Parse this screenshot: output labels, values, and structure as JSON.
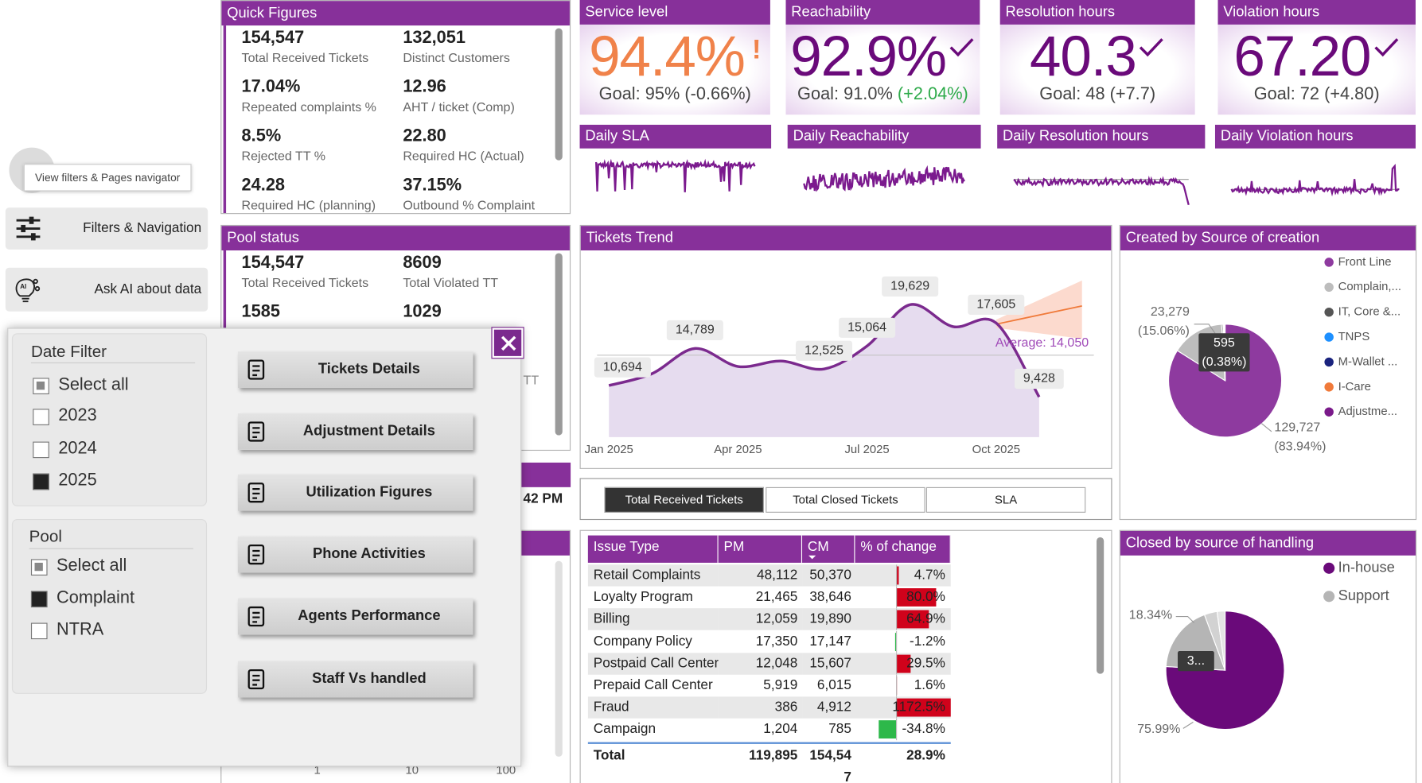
{
  "sidebar": {
    "tooltip": "View filters & Pages navigator",
    "filters_button": "Filters & Navigation",
    "ai_button": "Ask AI about data"
  },
  "quick_figures": {
    "title": "Quick Figures",
    "items": [
      {
        "value": "154,547",
        "label": "Total Received Tickets"
      },
      {
        "value": "132,051",
        "label": "Distinct Customers"
      },
      {
        "value": "17.04%",
        "label": "Repeated complaints %"
      },
      {
        "value": "12.96",
        "label": "AHT / ticket (Comp)"
      },
      {
        "value": "8.5%",
        "label": "Rejected TT %"
      },
      {
        "value": "22.80",
        "label": "Required HC (Actual)"
      },
      {
        "value": "24.28",
        "label": "Required HC (planning)"
      },
      {
        "value": "37.15%",
        "label": "Outbound % Complaint"
      }
    ]
  },
  "pool_status": {
    "title": "Pool status",
    "items": [
      {
        "value": "154,547",
        "label": "Total Received Tickets"
      },
      {
        "value": "8609",
        "label": "Total Violated TT"
      },
      {
        "value": "1585"
      },
      {
        "value": "1029"
      }
    ],
    "fragments": [
      "TT",
      "42 PM"
    ]
  },
  "bottom_axis": [
    "1",
    "10",
    "100"
  ],
  "kpis": [
    {
      "title": "Service level",
      "value": "94.4%",
      "flag": "!",
      "goal": "Goal: 95%",
      "delta": "(-0.66%)",
      "color": "#f0824a",
      "delta_color": "#444444"
    },
    {
      "title": "Reachability",
      "value": "92.9%",
      "goal": "Goal: 91.0%",
      "delta": "(+2.04%)",
      "color": "#6a0a7a",
      "delta_color": "#2eaa4a"
    },
    {
      "title": "Resolution hours",
      "value": "40.3",
      "goal": "Goal: 48",
      "delta": "(+7.7)",
      "color": "#6a0a7a",
      "delta_color": "#444444"
    },
    {
      "title": "Violation hours",
      "value": "67.20",
      "goal": "Goal: 72",
      "delta": "(+4.80)",
      "color": "#6a0a7a",
      "delta_color": "#444444"
    }
  ],
  "sparklines": [
    "Daily SLA",
    "Daily Reachability",
    "Daily Resolution hours",
    "Daily Violation hours"
  ],
  "chart_data": [
    {
      "type": "line",
      "title": "Tickets Trend",
      "categories": [
        "Jan 2025",
        null,
        null,
        "Apr 2025",
        null,
        null,
        "Jul 2025",
        null,
        null,
        "Oct 2025",
        null
      ],
      "values": [
        10694,
        12000,
        14789,
        12800,
        13400,
        12525,
        15064,
        19629,
        17200,
        17605,
        9428
      ],
      "value_labels": [
        "10,694",
        null,
        "14,789",
        null,
        null,
        "12,525",
        "15,064",
        "19,629",
        null,
        "17,605",
        "9,428"
      ],
      "color": "#7b2a8e",
      "ylim": [
        5000,
        22000
      ],
      "average": 14050,
      "average_label": "Average: 14,050"
    },
    {
      "type": "pie",
      "title": "Created by Source of creation",
      "categories": [
        "Front Line",
        "Complain,...",
        "IT, Core &...",
        "TNPS",
        "M-Wallet ...",
        "I-Care",
        "Adjustme..."
      ],
      "values": [
        129727,
        23279,
        595,
        400,
        300,
        150,
        96
      ],
      "value_labels": [
        "129,727",
        "23,279",
        "595",
        null,
        null,
        null,
        null
      ],
      "percent_labels": [
        "(83.94%)",
        "(15.06%)",
        "(0.38%)",
        null,
        null,
        null,
        null
      ],
      "colors": [
        "#8e3a9f",
        "#bdbdbd",
        "#555555",
        "#1e90ff",
        "#1a237e",
        "#f07a3a",
        "#7a1a8a"
      ]
    },
    {
      "type": "pie",
      "title": "Closed by source of handling",
      "categories": [
        "In-house",
        "Support",
        null,
        null
      ],
      "values": [
        75.99,
        18.34,
        3.5,
        2.17
      ],
      "value_labels": [
        "75.99%",
        "18.34%",
        "3...",
        null
      ],
      "colors": [
        "#6a0a7a",
        "#b5b5b5",
        "#d2d2d2",
        "#e4e4e4"
      ]
    }
  ],
  "tabs": [
    "Total Received Tickets",
    "Total Closed Tickets",
    "SLA"
  ],
  "active_tab": 0,
  "issue_table": {
    "columns": [
      "Issue Type",
      "PM",
      "CM",
      "% of change"
    ],
    "rows": [
      {
        "issue": "Retail Complaints",
        "pm": "48,112",
        "cm": "50,370",
        "change": 4.7,
        "change_label": "4.7%"
      },
      {
        "issue": "Loyalty Program",
        "pm": "21,465",
        "cm": "38,646",
        "change": 80.0,
        "change_label": "80.0%"
      },
      {
        "issue": "Billing",
        "pm": "12,059",
        "cm": "19,890",
        "change": 64.9,
        "change_label": "64.9%"
      },
      {
        "issue": "Company Policy",
        "pm": "17,350",
        "cm": "17,147",
        "change": -1.2,
        "change_label": "-1.2%"
      },
      {
        "issue": "Postpaid Call Center",
        "pm": "12,048",
        "cm": "15,607",
        "change": 29.5,
        "change_label": "29.5%"
      },
      {
        "issue": "Prepaid Call Center",
        "pm": "5,919",
        "cm": "6,015",
        "change": 1.6,
        "change_label": "1.6%"
      },
      {
        "issue": "Fraud",
        "pm": "386",
        "cm": "4,912",
        "change": 1172.5,
        "change_label": "1172.5%"
      },
      {
        "issue": "Campaign",
        "pm": "1,204",
        "cm": "785",
        "change": -34.8,
        "change_label": "-34.8%"
      }
    ],
    "total": {
      "label": "Total",
      "pm": "119,895",
      "cm": "154,547",
      "change_label": "28.9%"
    }
  },
  "overlay": {
    "date_filter": {
      "title": "Date Filter",
      "options": [
        {
          "label": "Select all",
          "state": "partial"
        },
        {
          "label": "2023",
          "state": "off"
        },
        {
          "label": "2024",
          "state": "off"
        },
        {
          "label": "2025",
          "state": "on"
        }
      ]
    },
    "pool": {
      "title": "Pool",
      "options": [
        {
          "label": "Select all",
          "state": "partial"
        },
        {
          "label": "Complaint",
          "state": "on"
        },
        {
          "label": "NTRA",
          "state": "off"
        }
      ]
    },
    "pages": [
      "Tickets Details",
      "Adjustment Details",
      "Utilization Figures",
      "Phone Activities",
      "Agents Performance",
      "Staff Vs handled"
    ]
  }
}
